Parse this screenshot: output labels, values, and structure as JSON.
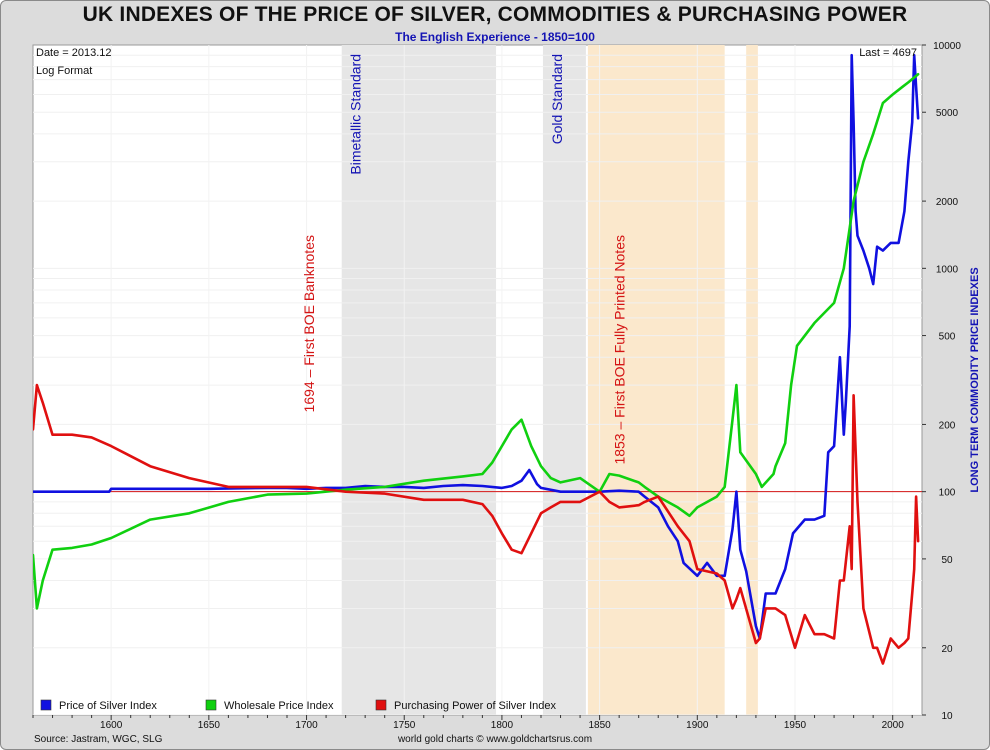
{
  "chart_data": {
    "type": "line",
    "title": "UK INDEXES OF THE PRICE OF SILVER, COMMODITIES & PURCHASING POWER",
    "subtitle": "The English Experience - 1850=100",
    "ylabel": "LONG TERM COMMODITY PRICE INDEXES",
    "y_scale": "log",
    "ylim": [
      10,
      10000
    ],
    "xlim": [
      1560,
      2015
    ],
    "x_ticks": [
      "1600",
      "1650",
      "1700",
      "1750",
      "1800",
      "1850",
      "1900",
      "1950",
      "2000"
    ],
    "y_ticks": [
      "10",
      "20",
      "50",
      "100",
      "200",
      "500",
      "1000",
      "2000",
      "5000",
      "10000"
    ],
    "reference_line": 100,
    "notes": {
      "date": "Date = 2013.12",
      "format": "Log Format",
      "last": "Last = 4697"
    },
    "shaded_periods": [
      {
        "from": 1718,
        "to": 1797,
        "color": "#e6e6e6"
      },
      {
        "from": 1821,
        "to": 1843,
        "color": "#e6e6e6"
      },
      {
        "from": 1844,
        "to": 1914,
        "color": "#fbe8cc"
      },
      {
        "from": 1925,
        "to": 1931,
        "color": "#fbe8cc"
      }
    ],
    "annotations": [
      {
        "year": 1718,
        "text": "Bimetallic Standard",
        "color": "#1414b4",
        "pos": "top"
      },
      {
        "year": 1821,
        "text": "Gold Standard",
        "color": "#1414b4",
        "pos": "top"
      },
      {
        "year": 1694,
        "text": "1694 – First BOE Banknotes",
        "color": "#d41414",
        "pos": "middle"
      },
      {
        "year": 1853,
        "text": "1853 – First BOE Fully Printed Notes",
        "color": "#d41414",
        "pos": "middle"
      }
    ],
    "series": [
      {
        "name": "Price of Silver Index",
        "color": "#1010e0",
        "x": [
          1560,
          1580,
          1599,
          1600,
          1620,
          1650,
          1680,
          1690,
          1700,
          1710,
          1720,
          1730,
          1740,
          1750,
          1760,
          1770,
          1780,
          1790,
          1800,
          1805,
          1810,
          1814,
          1818,
          1820,
          1830,
          1840,
          1850,
          1860,
          1870,
          1873,
          1880,
          1885,
          1890,
          1893,
          1900,
          1905,
          1910,
          1914,
          1918,
          1920,
          1922,
          1925,
          1930,
          1932,
          1935,
          1940,
          1945,
          1949,
          1955,
          1960,
          1965,
          1967,
          1970,
          1973,
          1975,
          1976,
          1978,
          1979,
          1980,
          1981,
          1982,
          1985,
          1988,
          1990,
          1992,
          1995,
          1999,
          2003,
          2006,
          2008,
          2010,
          2011,
          2012,
          2013
        ],
        "y": [
          100,
          100,
          100,
          103,
          103,
          103,
          104,
          104,
          103,
          104,
          104,
          106,
          105,
          105,
          104,
          106,
          107,
          106,
          104,
          106,
          112,
          125,
          108,
          104,
          100,
          100,
          100,
          101,
          100,
          95,
          85,
          70,
          60,
          48,
          42,
          48,
          42,
          42,
          68,
          100,
          55,
          44,
          25,
          22,
          35,
          35,
          45,
          65,
          75,
          75,
          78,
          150,
          160,
          400,
          180,
          250,
          550,
          9000,
          4500,
          1800,
          1400,
          1200,
          1000,
          850,
          1250,
          1200,
          1300,
          1300,
          1800,
          3000,
          4500,
          9000,
          6500,
          4697
        ]
      },
      {
        "name": "Wholesale Price Index",
        "color": "#10d010",
        "x": [
          1560,
          1562,
          1565,
          1570,
          1580,
          1590,
          1600,
          1620,
          1640,
          1660,
          1680,
          1700,
          1720,
          1740,
          1760,
          1780,
          1790,
          1795,
          1800,
          1805,
          1810,
          1815,
          1820,
          1825,
          1830,
          1840,
          1850,
          1855,
          1860,
          1870,
          1873,
          1880,
          1890,
          1896,
          1900,
          1910,
          1914,
          1918,
          1920,
          1922,
          1930,
          1933,
          1939,
          1940,
          1945,
          1948,
          1951,
          1960,
          1970,
          1975,
          1980,
          1985,
          1990,
          1995,
          2000,
          2005,
          2008,
          2013
        ],
        "y": [
          52,
          30,
          40,
          55,
          56,
          58,
          62,
          75,
          80,
          90,
          97,
          98,
          102,
          105,
          112,
          117,
          120,
          135,
          160,
          190,
          210,
          160,
          130,
          115,
          110,
          115,
          100,
          120,
          118,
          110,
          105,
          95,
          85,
          78,
          85,
          95,
          105,
          210,
          300,
          150,
          120,
          105,
          120,
          130,
          165,
          300,
          450,
          570,
          700,
          1000,
          2000,
          3000,
          4000,
          5500,
          6000,
          6500,
          6800,
          7400
        ]
      },
      {
        "name": "Purchasing Power of Silver Index",
        "color": "#e01010",
        "x": [
          1560,
          1562,
          1565,
          1570,
          1580,
          1590,
          1600,
          1620,
          1640,
          1660,
          1680,
          1700,
          1720,
          1740,
          1760,
          1780,
          1790,
          1795,
          1800,
          1805,
          1810,
          1815,
          1820,
          1825,
          1830,
          1840,
          1850,
          1855,
          1860,
          1870,
          1873,
          1880,
          1890,
          1896,
          1900,
          1910,
          1914,
          1918,
          1920,
          1922,
          1930,
          1932,
          1935,
          1940,
          1945,
          1950,
          1955,
          1960,
          1965,
          1970,
          1973,
          1975,
          1978,
          1979,
          1980,
          1982,
          1985,
          1990,
          1992,
          1995,
          1999,
          2003,
          2006,
          2008,
          2010,
          2011,
          2012,
          2013
        ],
        "y": [
          190,
          300,
          250,
          180,
          180,
          175,
          160,
          130,
          115,
          105,
          105,
          105,
          100,
          98,
          92,
          92,
          88,
          78,
          65,
          55,
          53,
          65,
          80,
          85,
          90,
          90,
          100,
          90,
          85,
          87,
          90,
          95,
          70,
          60,
          45,
          43,
          40,
          30,
          33,
          37,
          21,
          22,
          30,
          30,
          28,
          20,
          28,
          23,
          23,
          22,
          40,
          40,
          70,
          45,
          270,
          90,
          30,
          20,
          20,
          17,
          22,
          20,
          21,
          22,
          35,
          45,
          95,
          60
        ]
      }
    ]
  }
}
